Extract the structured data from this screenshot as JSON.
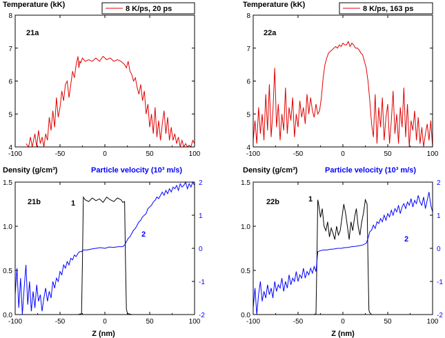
{
  "chart_data": [
    {
      "id": "21a",
      "type": "line",
      "panel_label": "21a",
      "ylabel": "Temperature (kK)",
      "xlabel": "",
      "xlim": [
        -100,
        100
      ],
      "ylim": [
        4,
        8
      ],
      "xticks": [
        "-100",
        "-50",
        "0",
        "50",
        "100"
      ],
      "yticks": [
        "4",
        "5",
        "6",
        "7",
        "8"
      ],
      "legend": "8 K/ps, 20 ps",
      "series": [
        {
          "name": "8 K/ps, 20 ps",
          "color": "#e00000",
          "x": [
            -88,
            -85,
            -83,
            -81,
            -78,
            -76,
            -74,
            -72,
            -70,
            -68,
            -66,
            -64,
            -62,
            -60,
            -58,
            -56,
            -54,
            -52,
            -50,
            -48,
            -46,
            -44,
            -42,
            -40,
            -38,
            -36,
            -34,
            -32,
            -30,
            -29,
            -28,
            -27,
            -25,
            -22,
            -18,
            -14,
            -10,
            -6,
            -2,
            2,
            6,
            10,
            14,
            18,
            22,
            24,
            26,
            28,
            30,
            32,
            34,
            36,
            38,
            40,
            42,
            44,
            46,
            48,
            50,
            52,
            54,
            56,
            58,
            60,
            62,
            64,
            66,
            68,
            70,
            72,
            74,
            76,
            78,
            80,
            82,
            84,
            86,
            88,
            90,
            92,
            94,
            96,
            98,
            100
          ],
          "y": [
            4.1,
            4.0,
            4.3,
            4.0,
            4.4,
            4.0,
            4.5,
            4.1,
            4.3,
            4.0,
            4.4,
            4.2,
            4.9,
            4.5,
            5.1,
            4.6,
            5.5,
            4.9,
            5.2,
            5.7,
            5.4,
            5.9,
            6.0,
            5.5,
            5.9,
            6.3,
            6.1,
            6.5,
            6.75,
            6.4,
            6.6,
            6.55,
            6.7,
            6.6,
            6.65,
            6.6,
            6.7,
            6.6,
            6.75,
            6.65,
            6.7,
            6.6,
            6.65,
            6.6,
            6.5,
            6.4,
            6.6,
            6.3,
            6.2,
            6.0,
            6.1,
            5.8,
            5.6,
            5.9,
            5.4,
            5.7,
            5.0,
            5.3,
            4.6,
            5.0,
            4.4,
            5.2,
            4.3,
            4.8,
            4.2,
            4.7,
            5.1,
            4.4,
            4.9,
            4.2,
            4.6,
            4.2,
            4.4,
            4.1,
            4.3,
            4.0,
            4.2,
            4.0,
            4.1,
            4.0,
            4.05,
            4.0,
            4.2,
            4.1
          ]
        }
      ]
    },
    {
      "id": "22a",
      "type": "line",
      "panel_label": "22a",
      "ylabel": "Temperature (kK)",
      "xlabel": "",
      "xlim": [
        -100,
        100
      ],
      "ylim": [
        4,
        8
      ],
      "xticks": [
        "-100",
        "-50",
        "0",
        "50",
        "100"
      ],
      "yticks": [
        "4",
        "5",
        "6",
        "7",
        "8"
      ],
      "legend": "8 K/ps, 163 ps",
      "series": [
        {
          "name": "8 K/ps, 163 ps",
          "color": "#e00000",
          "x": [
            -100,
            -98,
            -96,
            -94,
            -92,
            -90,
            -88,
            -86,
            -84,
            -82,
            -80,
            -78,
            -76,
            -74,
            -72,
            -70,
            -68,
            -66,
            -64,
            -62,
            -60,
            -58,
            -56,
            -54,
            -52,
            -50,
            -48,
            -46,
            -44,
            -42,
            -40,
            -38,
            -36,
            -34,
            -32,
            -30,
            -28,
            -26,
            -24,
            -22,
            -20,
            -18,
            -16,
            -14,
            -12,
            -10,
            -8,
            -6,
            -4,
            -2,
            0,
            2,
            4,
            6,
            8,
            10,
            12,
            14,
            16,
            18,
            20,
            22,
            24,
            26,
            28,
            30,
            32,
            34,
            36,
            38,
            40,
            42,
            44,
            46,
            48,
            50,
            52,
            54,
            56,
            58,
            60,
            62,
            64,
            66,
            68,
            70,
            72,
            74,
            76,
            78,
            80,
            82,
            84,
            86,
            88,
            90,
            92,
            94,
            96,
            98,
            100
          ],
          "y": [
            4.2,
            4.8,
            4.1,
            5.2,
            4.4,
            5.0,
            4.2,
            5.6,
            4.5,
            5.9,
            4.3,
            5.1,
            6.4,
            4.6,
            5.3,
            4.2,
            5.0,
            4.5,
            5.8,
            4.4,
            5.2,
            4.8,
            5.5,
            4.3,
            5.0,
            4.6,
            5.4,
            4.9,
            5.2,
            4.7,
            5.6,
            5.0,
            5.5,
            5.1,
            4.9,
            5.3,
            5.0,
            5.1,
            5.5,
            6.1,
            6.5,
            6.7,
            6.85,
            6.9,
            6.95,
            7.0,
            7.05,
            7.0,
            7.1,
            7.05,
            7.15,
            7.1,
            7.1,
            7.2,
            7.05,
            7.15,
            7.1,
            7.0,
            7.0,
            6.95,
            6.85,
            6.8,
            6.6,
            6.4,
            6.0,
            5.4,
            4.7,
            4.3,
            5.6,
            4.1,
            5.2,
            4.6,
            5.5,
            4.2,
            4.9,
            5.3,
            4.1,
            4.8,
            5.7,
            4.4,
            5.0,
            4.1,
            5.2,
            4.6,
            5.8,
            4.3,
            5.3,
            4.0,
            4.8,
            4.5,
            5.1,
            4.2,
            4.9,
            4.1,
            4.6,
            4.0,
            4.4,
            4.7,
            4.2,
            4.8,
            4.0
          ]
        }
      ]
    },
    {
      "id": "21b",
      "type": "line",
      "panel_label": "21b",
      "ylabel": "Density (g/cm³)",
      "y2label": "Particle velocity (10³ m/s)",
      "xlabel": "Z (nm)",
      "xlim": [
        -100,
        100
      ],
      "ylim": [
        0,
        1.5
      ],
      "y2lim": [
        -2,
        2
      ],
      "xticks": [
        "-100",
        "-50",
        "0",
        "50",
        "100"
      ],
      "yticks": [
        "0.0",
        "0.5",
        "1.0",
        "1.5"
      ],
      "y2ticks": [
        "-2",
        "-1",
        "0",
        "1",
        "2"
      ],
      "curve_labels": [
        "1",
        "2"
      ],
      "series": [
        {
          "name": "1",
          "color": "#000000",
          "axis": "left",
          "x": [
            -100,
            -60,
            -30,
            -26,
            -25,
            -24,
            -22,
            -18,
            -14,
            -10,
            -6,
            -2,
            2,
            6,
            10,
            14,
            18,
            20,
            22,
            23,
            24,
            25,
            26,
            30,
            60,
            100
          ],
          "y": [
            0.0,
            0.0,
            0.0,
            0.01,
            0.6,
            1.33,
            1.3,
            1.28,
            1.32,
            1.29,
            1.31,
            1.27,
            1.33,
            1.3,
            1.28,
            1.32,
            1.3,
            1.27,
            1.28,
            0.6,
            0.06,
            0.02,
            0.01,
            0.0,
            0.0,
            0.0
          ]
        },
        {
          "name": "2",
          "color": "#0000ff",
          "axis": "right",
          "x": [
            -100,
            -98,
            -96,
            -94,
            -92,
            -90,
            -88,
            -86,
            -84,
            -82,
            -80,
            -78,
            -76,
            -74,
            -72,
            -70,
            -68,
            -66,
            -64,
            -62,
            -60,
            -58,
            -56,
            -54,
            -52,
            -50,
            -48,
            -46,
            -44,
            -42,
            -40,
            -38,
            -36,
            -34,
            -32,
            -30,
            -28,
            -26,
            -24,
            -20,
            -15,
            -10,
            -5,
            0,
            5,
            10,
            15,
            20,
            22,
            24,
            26,
            28,
            30,
            32,
            34,
            36,
            38,
            40,
            42,
            44,
            46,
            48,
            50,
            52,
            54,
            56,
            58,
            60,
            62,
            64,
            66,
            68,
            70,
            72,
            74,
            76,
            78,
            80,
            82,
            84,
            86,
            88,
            90,
            92,
            94,
            96,
            98,
            100
          ],
          "y": [
            -1.4,
            -0.6,
            -1.8,
            -0.9,
            -2.0,
            -1.2,
            -0.5,
            -1.7,
            -1.0,
            -1.9,
            -1.3,
            -1.8,
            -1.1,
            -1.6,
            -1.4,
            -1.9,
            -1.5,
            -1.2,
            -1.6,
            -1.3,
            -1.5,
            -1.0,
            -1.2,
            -0.9,
            -1.0,
            -0.7,
            -0.8,
            -0.5,
            -0.6,
            -0.4,
            -0.5,
            -0.3,
            -0.35,
            -0.2,
            -0.25,
            -0.15,
            -0.1,
            -0.1,
            -0.05,
            -0.05,
            -0.02,
            0.0,
            0.02,
            0.0,
            0.04,
            0.03,
            0.05,
            0.05,
            0.1,
            0.2,
            0.3,
            0.35,
            0.45,
            0.55,
            0.6,
            0.7,
            0.8,
            0.85,
            0.95,
            1.0,
            1.05,
            1.2,
            1.25,
            1.3,
            1.4,
            1.45,
            1.55,
            1.5,
            1.6,
            1.7,
            1.6,
            1.75,
            1.65,
            1.8,
            1.7,
            1.85,
            1.8,
            1.9,
            1.75,
            1.95,
            1.85,
            1.9,
            2.0,
            1.8,
            1.95,
            1.85,
            2.0,
            1.9
          ]
        }
      ]
    },
    {
      "id": "22b",
      "type": "line",
      "panel_label": "22b",
      "ylabel": "Density (g/cm³)",
      "y2label": "Particle velocity (10³ m/s)",
      "xlabel": "Z (nm)",
      "xlim": [
        -100,
        100
      ],
      "ylim": [
        0,
        1.5
      ],
      "y2lim": [
        -2,
        2
      ],
      "xticks": [
        "-100",
        "-50",
        "0",
        "50",
        "100"
      ],
      "yticks": [
        "0.0",
        "0.5",
        "1.0",
        "1.5"
      ],
      "y2ticks": [
        "-2",
        "-1",
        "0",
        "1",
        "2"
      ],
      "curve_labels": [
        "1",
        "2"
      ],
      "series": [
        {
          "name": "1",
          "color": "#000000",
          "axis": "left",
          "x": [
            -100,
            -60,
            -32,
            -30,
            -29,
            -28,
            -27,
            -25,
            -23,
            -21,
            -19,
            -17,
            -15,
            -13,
            -11,
            -9,
            -7,
            -5,
            -3,
            -1,
            1,
            3,
            5,
            7,
            9,
            11,
            13,
            15,
            17,
            19,
            21,
            23,
            25,
            27,
            28,
            29,
            30,
            32,
            60,
            100
          ],
          "y": [
            0.0,
            0.0,
            0.0,
            0.01,
            0.6,
            1.3,
            1.25,
            1.1,
            1.2,
            1.0,
            0.95,
            1.05,
            0.88,
            0.98,
            0.92,
            0.85,
            1.0,
            0.9,
            0.95,
            1.1,
            1.25,
            1.15,
            1.0,
            0.85,
            1.05,
            0.95,
            1.1,
            1.2,
            1.0,
            0.9,
            1.05,
            1.15,
            1.3,
            1.25,
            0.6,
            0.05,
            0.02,
            0.0,
            0.0,
            0.0
          ]
        },
        {
          "name": "2",
          "color": "#0000ff",
          "axis": "right",
          "x": [
            -100,
            -98,
            -96,
            -94,
            -92,
            -90,
            -88,
            -86,
            -84,
            -82,
            -80,
            -78,
            -76,
            -74,
            -72,
            -70,
            -68,
            -66,
            -64,
            -62,
            -60,
            -58,
            -56,
            -54,
            -52,
            -50,
            -48,
            -46,
            -44,
            -42,
            -40,
            -38,
            -36,
            -34,
            -32,
            -30,
            -28,
            -26,
            -22,
            -18,
            -14,
            -10,
            -6,
            -2,
            2,
            6,
            10,
            14,
            18,
            22,
            26,
            28,
            30,
            32,
            34,
            36,
            38,
            40,
            42,
            44,
            46,
            48,
            50,
            52,
            54,
            56,
            58,
            60,
            62,
            64,
            66,
            68,
            70,
            72,
            74,
            76,
            78,
            80,
            82,
            84,
            86,
            88,
            90,
            92,
            94,
            96,
            98,
            100
          ],
          "y": [
            -1.8,
            -1.2,
            -2.0,
            -1.4,
            -1.0,
            -1.6,
            -1.3,
            -1.5,
            -1.1,
            -1.4,
            -1.2,
            -1.5,
            -1.0,
            -1.3,
            -1.1,
            -1.2,
            -0.9,
            -1.3,
            -1.0,
            -1.2,
            -0.8,
            -1.1,
            -0.9,
            -1.0,
            -0.7,
            -1.0,
            -0.8,
            -0.9,
            -0.6,
            -0.9,
            -0.7,
            -0.8,
            -0.6,
            -0.75,
            -0.55,
            -0.7,
            -0.1,
            -0.08,
            -0.05,
            -0.05,
            -0.03,
            -0.02,
            0.0,
            0.0,
            0.02,
            0.03,
            0.05,
            0.06,
            0.08,
            0.1,
            0.15,
            0.3,
            0.5,
            0.55,
            0.7,
            0.6,
            0.8,
            0.75,
            0.9,
            0.8,
            1.0,
            0.85,
            1.05,
            0.95,
            1.15,
            1.0,
            1.2,
            1.1,
            1.3,
            1.05,
            1.25,
            1.35,
            1.2,
            1.4,
            1.3,
            1.5,
            1.25,
            1.45,
            1.35,
            1.6,
            1.4,
            1.3,
            1.55,
            1.2,
            1.45,
            1.7,
            1.3,
            1.1
          ]
        }
      ]
    }
  ]
}
